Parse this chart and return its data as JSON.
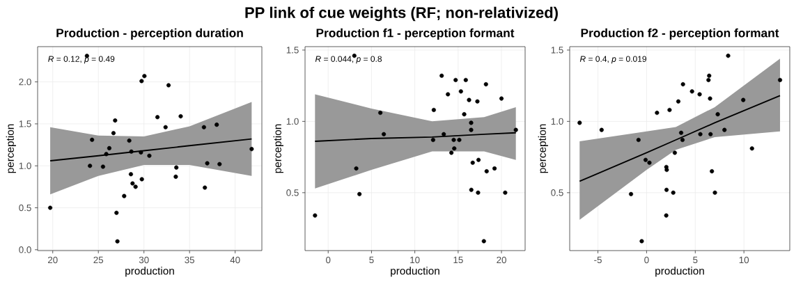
{
  "chart_data": [
    {
      "type": "other",
      "title": "PP link of cue weights (RF; non-relativized)"
    },
    {
      "type": "scatter",
      "title": "Production - perception duration",
      "xlabel": "production",
      "ylabel": "perception",
      "annotations": [
        "*R* = 0.12, *p* = 0.49"
      ],
      "grid": true,
      "xlim": [
        18.34,
        42.93
      ],
      "ylim": [
        -0.01,
        2.42
      ],
      "xticks": [
        20,
        25,
        30,
        35,
        40
      ],
      "yticks": [
        {
          "value": 0,
          "label": "0.0"
        },
        {
          "value": 0.5,
          "label": "0.5"
        },
        {
          "value": 1,
          "label": "1.0"
        },
        {
          "value": 1.5,
          "label": "1.5"
        },
        {
          "value": 2,
          "label": "2.0"
        }
      ],
      "series": [
        {
          "type": "scatter",
          "color": "#000000",
          "marker": "circle",
          "x": [
            19.72,
            23.75,
            24.08,
            24.31,
            25.51,
            25.87,
            26.2,
            26.66,
            26.84,
            26.99,
            27.09,
            27.83,
            28.39,
            28.57,
            28.62,
            28.75,
            29.08,
            29.67,
            29.74,
            29.77,
            30.05,
            30.59,
            31.48,
            32.37,
            32.7,
            33.49,
            33.55,
            34.03,
            36.58,
            36.68,
            36.94,
            37.98,
            38.29,
            41.81
          ],
          "values": [
            0.5,
            2.31,
            1.0,
            1.31,
            0.99,
            1.14,
            1.21,
            1.39,
            1.54,
            0.44,
            0.1,
            0.64,
            1.3,
            0.9,
            1.17,
            0.79,
            0.75,
            1.16,
            2.01,
            0.84,
            2.07,
            1.12,
            1.58,
            1.46,
            1.96,
            0.87,
            0.98,
            1.59,
            1.46,
            0.74,
            1.03,
            1.49,
            1.02,
            1.2
          ]
        },
        {
          "type": "line",
          "color": "#000000",
          "x": [
            19.72,
            25,
            30,
            35,
            41.81
          ],
          "values": [
            1.06,
            1.12,
            1.18,
            1.24,
            1.32
          ],
          "lower": [
            0.66,
            0.88,
            1.01,
            1.01,
            0.88
          ],
          "upper": [
            1.46,
            1.36,
            1.35,
            1.47,
            1.76
          ]
        }
      ]
    },
    {
      "type": "scatter",
      "title": "Production f1 - perception formant",
      "xlabel": "production",
      "ylabel": "perception",
      "annotations": [
        "*R* = 0.044, *p* = 0.8"
      ],
      "grid": true,
      "xlim": [
        -2.67,
        22.73
      ],
      "ylim": [
        0.094,
        1.524
      ],
      "xticks": [
        0,
        5,
        10,
        15,
        20
      ],
      "yticks": [
        {
          "value": 0.5,
          "label": "0.5"
        },
        {
          "value": 1,
          "label": "1.0"
        },
        {
          "value": 1.5,
          "label": "1.5"
        }
      ],
      "series": [
        {
          "type": "scatter",
          "color": "#000000",
          "marker": "circle",
          "x": [
            -1.52,
            3.02,
            3.24,
            3.61,
            6.02,
            6.42,
            12.11,
            12.19,
            13.1,
            13.34,
            13.82,
            14.22,
            14.49,
            14.55,
            14.71,
            15.13,
            15.32,
            15.7,
            15.88,
            16.26,
            16.5,
            16.5,
            16.52,
            16.68,
            17.22,
            17.3,
            17.35,
            17.97,
            18.21,
            18.29,
            19.2,
            20.0,
            20.43,
            21.66
          ],
          "values": [
            0.34,
            1.46,
            0.67,
            0.49,
            1.06,
            0.91,
            0.87,
            1.08,
            1.32,
            0.91,
            1.19,
            0.78,
            0.87,
            0.81,
            1.29,
            0.87,
            1.21,
            1.05,
            1.29,
            1.15,
            0.99,
            0.94,
            0.52,
            0.71,
            1.14,
            0.5,
            0.73,
            0.16,
            1.26,
            0.65,
            0.67,
            1.16,
            0.5,
            0.94
          ]
        },
        {
          "type": "line",
          "color": "#000000",
          "x": [
            -1.52,
            5,
            12,
            18,
            21.66
          ],
          "values": [
            0.86,
            0.88,
            0.89,
            0.91,
            0.92
          ],
          "lower": [
            0.53,
            0.66,
            0.79,
            0.79,
            0.73
          ],
          "upper": [
            1.19,
            1.09,
            1.0,
            1.03,
            1.1
          ]
        }
      ]
    },
    {
      "type": "scatter",
      "title": "Production f2 - perception formant",
      "xlabel": "production",
      "ylabel": "perception",
      "annotations": [
        "*R* = 0.4, *p* = 0.019"
      ],
      "grid": true,
      "xlim": [
        -7.9,
        14.71
      ],
      "ylim": [
        0.094,
        1.524
      ],
      "xticks": [
        -5,
        0,
        5,
        10
      ],
      "yticks": [
        {
          "value": 0.5,
          "label": "0.5"
        },
        {
          "value": 1,
          "label": "1.0"
        },
        {
          "value": 1.5,
          "label": "1.5"
        }
      ],
      "series": [
        {
          "type": "scatter",
          "color": "#000000",
          "marker": "circle",
          "x": [
            -6.88,
            -4.62,
            -1.6,
            -0.83,
            -0.5,
            -0.1,
            0.29,
            1.07,
            2.05,
            2.03,
            2.07,
            2.02,
            2.36,
            2.74,
            2.9,
            3.26,
            3.55,
            3.69,
            3.74,
            4.67,
            5.45,
            5.52,
            6.36,
            6.43,
            6.52,
            6.57,
            6.71,
            7.02,
            7.31,
            8.0,
            8.38,
            9.93,
            10.83,
            13.71
          ],
          "values": [
            0.99,
            0.94,
            0.49,
            0.87,
            0.16,
            0.73,
            0.71,
            1.06,
            0.52,
            0.68,
            0.66,
            0.34,
            1.08,
            0.5,
            0.78,
            1.14,
            0.92,
            0.87,
            1.26,
            1.21,
            1.19,
            0.91,
            1.29,
            1.32,
            1.16,
            0.91,
            0.65,
            0.5,
            1.05,
            0.94,
            1.46,
            1.15,
            0.81,
            1.29
          ]
        },
        {
          "type": "line",
          "color": "#000000",
          "x": [
            -6.88,
            0,
            3,
            7,
            13.71
          ],
          "values": [
            0.58,
            0.78,
            0.87,
            0.99,
            1.18
          ],
          "lower": [
            0.31,
            0.66,
            0.8,
            0.89,
            0.93
          ],
          "upper": [
            0.86,
            0.93,
            0.96,
            1.1,
            1.44
          ]
        }
      ]
    }
  ]
}
